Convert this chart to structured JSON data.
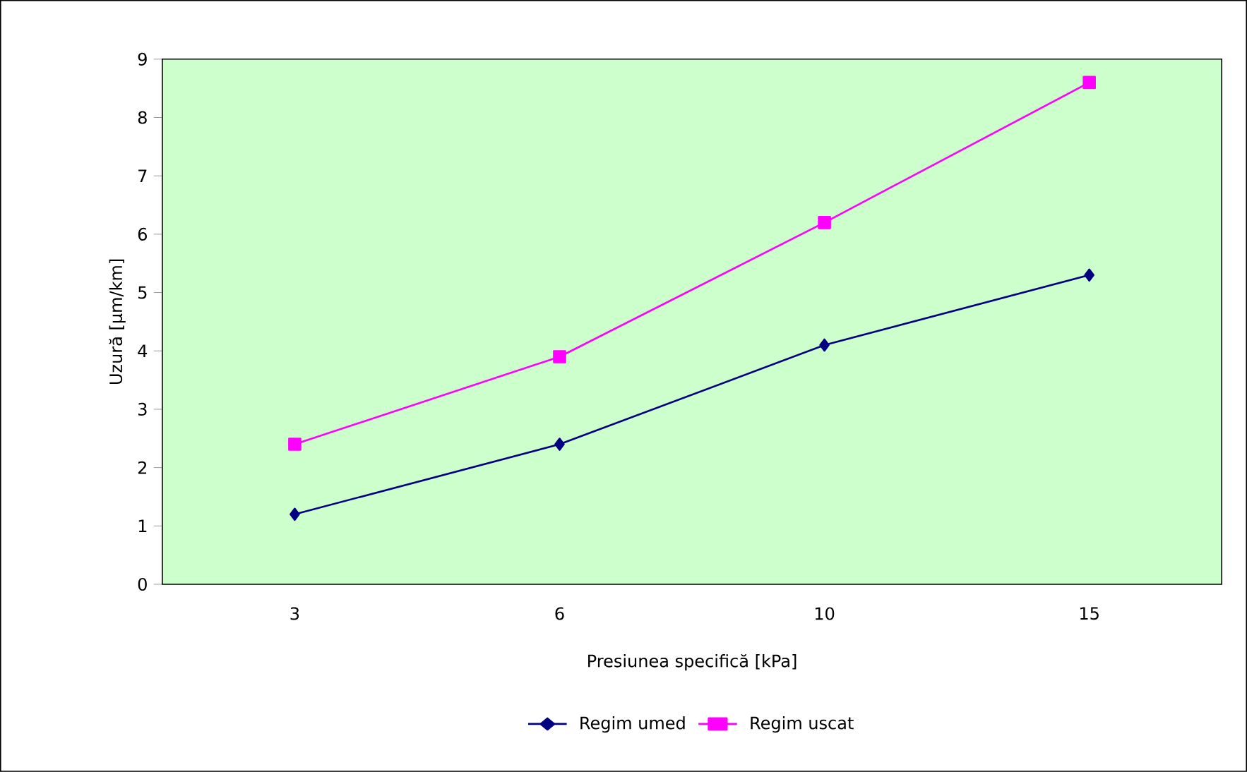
{
  "chart_data": {
    "type": "line",
    "xlabel": "Presiunea specifică [kPa]",
    "ylabel": "Uzură [µm/km]",
    "categories": [
      "3",
      "6",
      "10",
      "15"
    ],
    "series": [
      {
        "name": "Regim umed",
        "color": "#000080",
        "marker": "diamond",
        "values": [
          1.2,
          2.4,
          4.1,
          5.3
        ]
      },
      {
        "name": "Regim uscat",
        "color": "#ff00ff",
        "marker": "square",
        "values": [
          2.4,
          3.9,
          6.2,
          8.6
        ]
      }
    ],
    "ylim": [
      0,
      9
    ],
    "yticks": [
      0,
      1,
      2,
      3,
      4,
      5,
      6,
      7,
      8,
      9
    ],
    "grid": false,
    "legend": "bottom"
  }
}
